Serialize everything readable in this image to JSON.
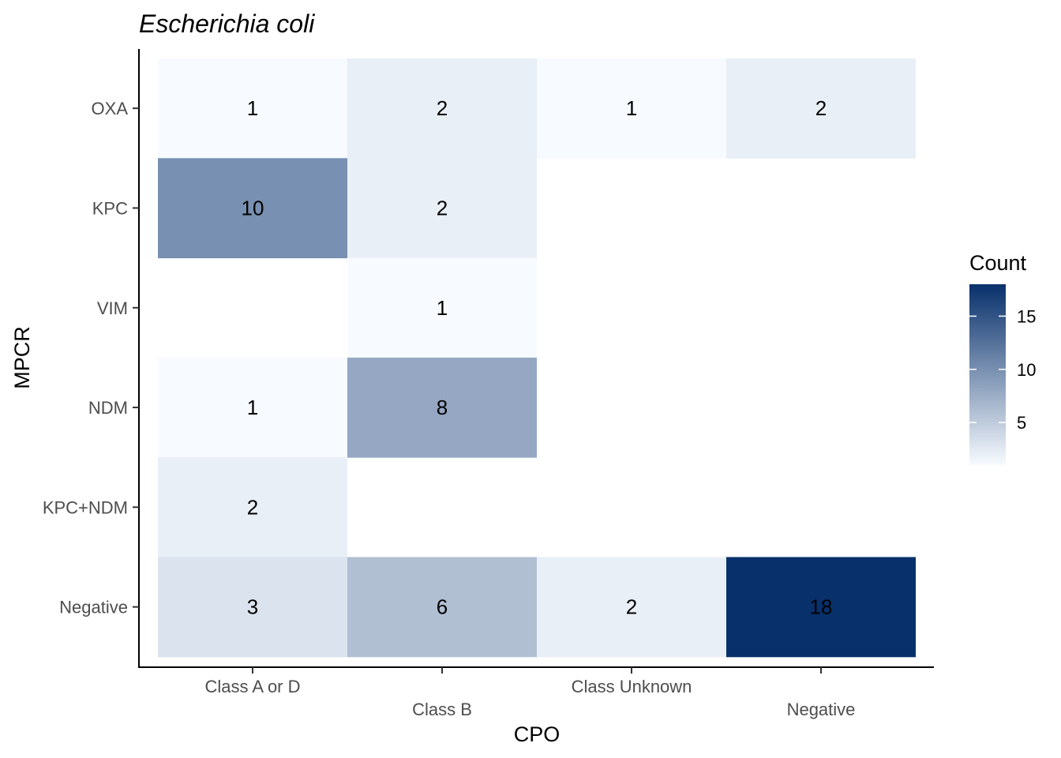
{
  "chart_data": {
    "type": "heatmap",
    "title": "Escherichia coli",
    "xlabel": "CPO",
    "ylabel": "MPCR",
    "x_categories": [
      "Class A or D",
      "Class B",
      "Class Unknown",
      "Negative"
    ],
    "y_categories": [
      "OXA",
      "KPC",
      "VIM",
      "NDM",
      "KPC+NDM",
      "Negative"
    ],
    "cells": [
      {
        "x": "Class A or D",
        "y": "OXA",
        "value": 1
      },
      {
        "x": "Class B",
        "y": "OXA",
        "value": 2
      },
      {
        "x": "Class Unknown",
        "y": "OXA",
        "value": 1
      },
      {
        "x": "Negative",
        "y": "OXA",
        "value": 2
      },
      {
        "x": "Class A or D",
        "y": "KPC",
        "value": 10
      },
      {
        "x": "Class B",
        "y": "KPC",
        "value": 2
      },
      {
        "x": "Class B",
        "y": "VIM",
        "value": 1
      },
      {
        "x": "Class A or D",
        "y": "NDM",
        "value": 1
      },
      {
        "x": "Class B",
        "y": "NDM",
        "value": 8
      },
      {
        "x": "Class A or D",
        "y": "KPC+NDM",
        "value": 2
      },
      {
        "x": "Class A or D",
        "y": "Negative",
        "value": 3
      },
      {
        "x": "Class B",
        "y": "Negative",
        "value": 6
      },
      {
        "x": "Class Unknown",
        "y": "Negative",
        "value": 2
      },
      {
        "x": "Negative",
        "y": "Negative",
        "value": 18
      }
    ],
    "legend": {
      "title": "Count",
      "position": "right",
      "ticks": [
        5,
        10,
        15
      ],
      "range": [
        1,
        18
      ],
      "low_color": "#f7fbff",
      "high_color": "#08306b"
    },
    "grid": false
  }
}
